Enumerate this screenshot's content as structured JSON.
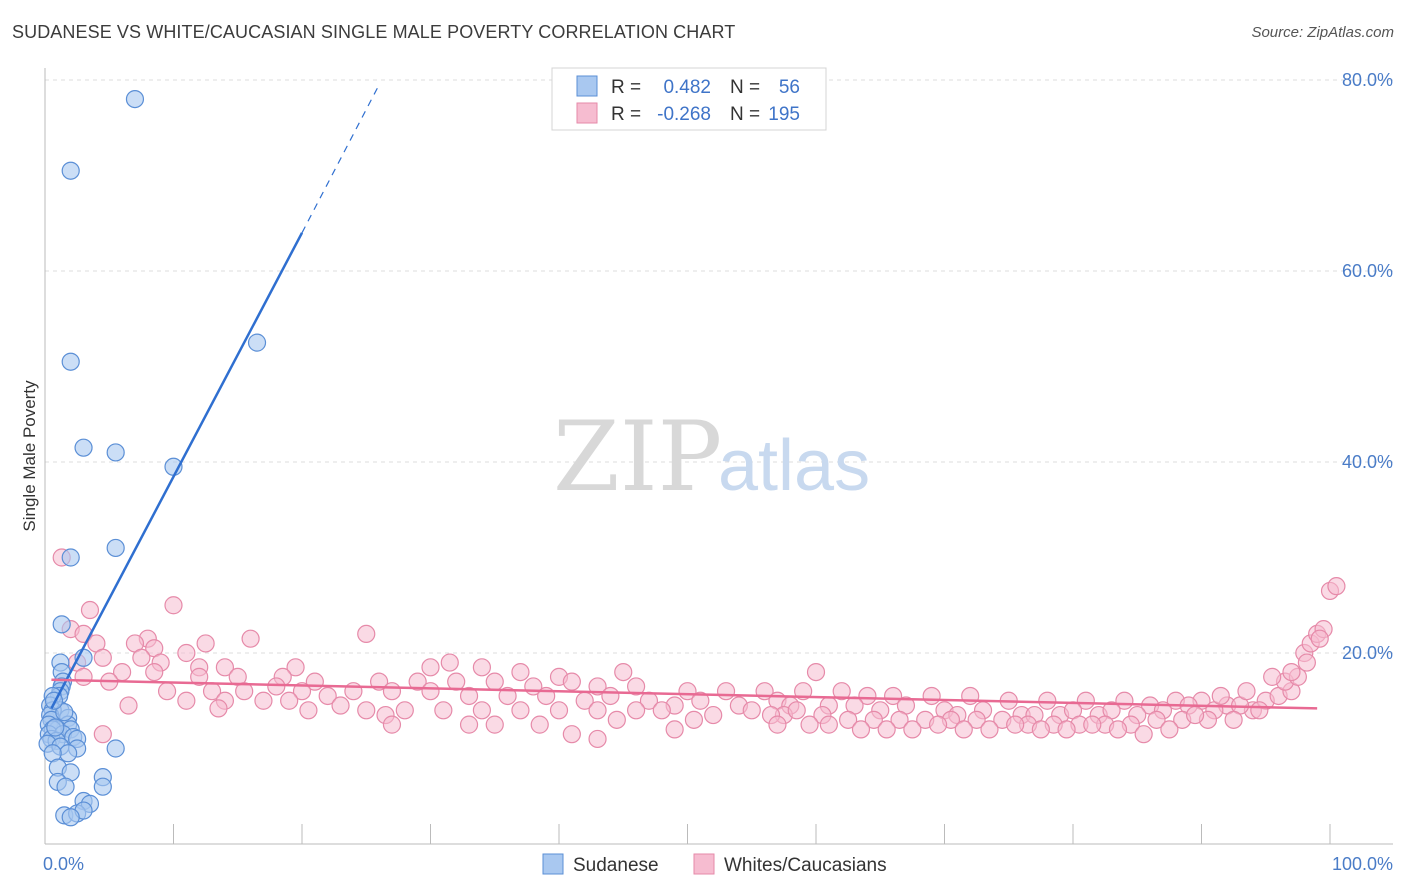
{
  "header": {
    "title": "SUDANESE VS WHITE/CAUCASIAN SINGLE MALE POVERTY CORRELATION CHART",
    "source": "Source: ZipAtlas.com"
  },
  "watermark": {
    "part1": "ZIP",
    "part2": "atlas"
  },
  "colors": {
    "sudanese_fill": "#a9c8f0",
    "sudanese_stroke": "#5b8fd6",
    "sudanese_line": "#2f6fd0",
    "white_fill": "#f6bcd0",
    "white_stroke": "#e68aa9",
    "white_line": "#e86a93",
    "tick_text": "#4a7cc7",
    "grid": "#dddddd"
  },
  "legend": {
    "rows": [
      {
        "r_label": "R =",
        "r_value": "0.482",
        "n_label": "N =",
        "n_value": "56"
      },
      {
        "r_label": "R =",
        "r_value": "-0.268",
        "n_label": "N =",
        "n_value": "195"
      }
    ]
  },
  "chart_data": {
    "type": "scatter",
    "title": "SUDANESE VS WHITE/CAUCASIAN SINGLE MALE POVERTY CORRELATION CHART",
    "xlabel": "",
    "ylabel": "Single Male Poverty",
    "xlim": [
      0,
      100
    ],
    "ylim": [
      0,
      80
    ],
    "x_tick_labels": [
      "0.0%",
      "100.0%"
    ],
    "y_tick_labels": [
      "20.0%",
      "40.0%",
      "60.0%",
      "80.0%"
    ],
    "y_ticks": [
      20,
      40,
      60,
      80
    ],
    "grid": true,
    "legend_position": "bottom",
    "series": [
      {
        "name": "Sudanese",
        "r": 0.482,
        "n": 56,
        "trend": {
          "x": [
            0.5,
            20
          ],
          "y": [
            14.2,
            64
          ]
        },
        "trend_dashed": {
          "x": [
            20,
            26
          ],
          "y": [
            64,
            79.5
          ]
        },
        "points": [
          [
            7,
            78
          ],
          [
            2,
            70.5
          ],
          [
            16.5,
            52.5
          ],
          [
            2,
            50.5
          ],
          [
            3,
            41.5
          ],
          [
            5.5,
            41
          ],
          [
            10,
            39.5
          ],
          [
            5.5,
            31
          ],
          [
            2,
            30
          ],
          [
            1.3,
            23
          ],
          [
            3,
            19.5
          ],
          [
            1.2,
            19
          ],
          [
            1.3,
            18
          ],
          [
            1.4,
            17
          ],
          [
            1.3,
            16.5
          ],
          [
            1.2,
            16
          ],
          [
            1.1,
            15.5
          ],
          [
            0.6,
            15.5
          ],
          [
            0.4,
            14.5
          ],
          [
            1.2,
            14
          ],
          [
            0.6,
            14
          ],
          [
            0.4,
            13.5
          ],
          [
            1.8,
            13.2
          ],
          [
            0.5,
            13
          ],
          [
            1.8,
            12.5
          ],
          [
            0.3,
            12.5
          ],
          [
            1,
            12
          ],
          [
            2,
            12
          ],
          [
            0.6,
            12
          ],
          [
            0.3,
            11.5
          ],
          [
            1.4,
            11.5
          ],
          [
            2.2,
            11.2
          ],
          [
            0.5,
            11
          ],
          [
            2.5,
            11
          ],
          [
            0.9,
            10.8
          ],
          [
            0.2,
            10.5
          ],
          [
            1.2,
            10.2
          ],
          [
            5.5,
            10
          ],
          [
            2.5,
            10
          ],
          [
            1.8,
            9.5
          ],
          [
            0.6,
            9.5
          ],
          [
            1,
            8
          ],
          [
            2,
            7.5
          ],
          [
            4.5,
            7
          ],
          [
            1,
            6.5
          ],
          [
            1.6,
            6
          ],
          [
            4.5,
            6
          ],
          [
            3,
            4.5
          ],
          [
            3.5,
            4.2
          ],
          [
            1.5,
            3
          ],
          [
            2.5,
            3.2
          ],
          [
            3,
            3.5
          ],
          [
            2,
            2.8
          ],
          [
            0.8,
            12.2
          ],
          [
            1.5,
            13.8
          ],
          [
            0.7,
            15
          ]
        ]
      },
      {
        "name": "Whites/Caucasians",
        "r": -0.268,
        "n": 195,
        "trend": {
          "x": [
            0.5,
            99
          ],
          "y": [
            17.2,
            14.2
          ]
        },
        "points": [
          [
            1.3,
            30
          ],
          [
            10,
            25
          ],
          [
            3.5,
            24.5
          ],
          [
            2,
            22.5
          ],
          [
            3,
            22
          ],
          [
            25,
            22
          ],
          [
            8,
            21.5
          ],
          [
            16,
            21.5
          ],
          [
            4,
            21
          ],
          [
            7,
            21
          ],
          [
            12.5,
            21
          ],
          [
            8.5,
            20.5
          ],
          [
            11,
            20
          ],
          [
            4.5,
            19.5
          ],
          [
            7.5,
            19.5
          ],
          [
            2.5,
            19
          ],
          [
            9,
            19
          ],
          [
            12,
            18.5
          ],
          [
            14,
            18.5
          ],
          [
            19.5,
            18.5
          ],
          [
            30,
            18.5
          ],
          [
            31.5,
            19
          ],
          [
            34,
            18.5
          ],
          [
            37,
            18
          ],
          [
            40,
            17.5
          ],
          [
            45,
            18
          ],
          [
            60,
            18
          ],
          [
            6,
            18
          ],
          [
            8.5,
            18
          ],
          [
            12,
            17.5
          ],
          [
            15,
            17.5
          ],
          [
            18.5,
            17.5
          ],
          [
            21,
            17
          ],
          [
            26,
            17
          ],
          [
            29,
            17
          ],
          [
            32,
            17
          ],
          [
            35,
            17
          ],
          [
            38,
            16.5
          ],
          [
            41,
            17
          ],
          [
            43,
            16.5
          ],
          [
            46,
            16.5
          ],
          [
            50,
            16
          ],
          [
            53,
            16
          ],
          [
            56,
            16
          ],
          [
            59,
            16
          ],
          [
            62,
            16
          ],
          [
            64,
            15.5
          ],
          [
            66,
            15.5
          ],
          [
            69,
            15.5
          ],
          [
            72,
            15.5
          ],
          [
            75,
            15
          ],
          [
            78,
            15
          ],
          [
            81,
            15
          ],
          [
            84,
            15
          ],
          [
            86,
            14.5
          ],
          [
            88,
            15
          ],
          [
            90,
            15
          ],
          [
            92,
            14.5
          ],
          [
            94,
            14
          ],
          [
            3,
            17.5
          ],
          [
            5,
            17
          ],
          [
            9.5,
            16
          ],
          [
            13,
            16
          ],
          [
            15.5,
            16
          ],
          [
            18,
            16.5
          ],
          [
            20,
            16
          ],
          [
            22,
            15.5
          ],
          [
            24,
            16
          ],
          [
            27,
            16
          ],
          [
            30,
            16
          ],
          [
            33,
            15.5
          ],
          [
            36,
            15.5
          ],
          [
            39,
            15.5
          ],
          [
            42,
            15
          ],
          [
            44,
            15.5
          ],
          [
            47,
            15
          ],
          [
            49,
            14.5
          ],
          [
            51,
            15
          ],
          [
            54,
            14.5
          ],
          [
            57,
            15
          ],
          [
            58,
            14.5
          ],
          [
            61,
            14.5
          ],
          [
            63,
            14.5
          ],
          [
            65,
            14
          ],
          [
            67,
            14.5
          ],
          [
            70,
            14
          ],
          [
            71,
            13.5
          ],
          [
            73,
            14
          ],
          [
            76,
            13.5
          ],
          [
            77,
            13.5
          ],
          [
            79,
            13.5
          ],
          [
            80,
            14
          ],
          [
            82,
            13.5
          ],
          [
            83,
            14
          ],
          [
            85,
            13.5
          ],
          [
            87,
            14
          ],
          [
            89,
            14.5
          ],
          [
            91,
            14
          ],
          [
            93,
            14.5
          ],
          [
            95,
            15
          ],
          [
            96,
            15.5
          ],
          [
            97,
            16
          ],
          [
            11,
            15
          ],
          [
            14,
            15
          ],
          [
            17,
            15
          ],
          [
            19,
            15
          ],
          [
            23,
            14.5
          ],
          [
            25,
            14
          ],
          [
            28,
            14
          ],
          [
            31,
            14
          ],
          [
            34,
            14
          ],
          [
            37,
            14
          ],
          [
            40,
            14
          ],
          [
            43,
            14
          ],
          [
            46,
            14
          ],
          [
            48,
            14
          ],
          [
            52,
            13.5
          ],
          [
            55,
            14
          ],
          [
            57.5,
            13.5
          ],
          [
            60.5,
            13.5
          ],
          [
            62.5,
            13
          ],
          [
            64.5,
            13
          ],
          [
            66.5,
            13
          ],
          [
            68.5,
            13
          ],
          [
            70.5,
            13
          ],
          [
            72.5,
            13
          ],
          [
            74.5,
            13
          ],
          [
            76.5,
            12.5
          ],
          [
            78.5,
            12.5
          ],
          [
            80.5,
            12.5
          ],
          [
            82.5,
            12.5
          ],
          [
            84.5,
            12.5
          ],
          [
            86.5,
            13
          ],
          [
            88.5,
            13
          ],
          [
            90.5,
            13
          ],
          [
            92.5,
            13
          ],
          [
            94.5,
            14
          ],
          [
            96.5,
            17
          ],
          [
            97.5,
            17.5
          ],
          [
            98,
            20
          ],
          [
            98.5,
            21
          ],
          [
            99,
            22
          ],
          [
            99.5,
            22.5
          ],
          [
            100,
            26.5
          ],
          [
            100.5,
            27
          ],
          [
            97,
            18
          ],
          [
            98.2,
            19
          ],
          [
            99.2,
            21.5
          ],
          [
            95.5,
            17.5
          ],
          [
            93.5,
            16
          ],
          [
            91.5,
            15.5
          ],
          [
            6.5,
            14.5
          ],
          [
            13.5,
            14.2
          ],
          [
            20.5,
            14
          ],
          [
            26.5,
            13.5
          ],
          [
            33,
            12.5
          ],
          [
            38.5,
            12.5
          ],
          [
            44.5,
            13
          ],
          [
            50.5,
            13
          ],
          [
            56.5,
            13.5
          ],
          [
            59.5,
            12.5
          ],
          [
            63.5,
            12
          ],
          [
            67.5,
            12
          ],
          [
            71.5,
            12
          ],
          [
            75.5,
            12.5
          ],
          [
            79.5,
            12
          ],
          [
            83.5,
            12
          ],
          [
            87.5,
            12
          ],
          [
            41,
            11.5
          ],
          [
            43,
            11
          ],
          [
            49,
            12
          ],
          [
            61,
            12.5
          ],
          [
            65.5,
            12
          ],
          [
            69.5,
            12.5
          ],
          [
            73.5,
            12
          ],
          [
            77.5,
            12
          ],
          [
            81.5,
            12.5
          ],
          [
            85.5,
            11.5
          ],
          [
            89.5,
            13.5
          ],
          [
            27,
            12.5
          ],
          [
            35,
            12.5
          ],
          [
            4.5,
            11.5
          ],
          [
            57,
            12.5
          ],
          [
            58.5,
            14
          ]
        ]
      }
    ]
  }
}
